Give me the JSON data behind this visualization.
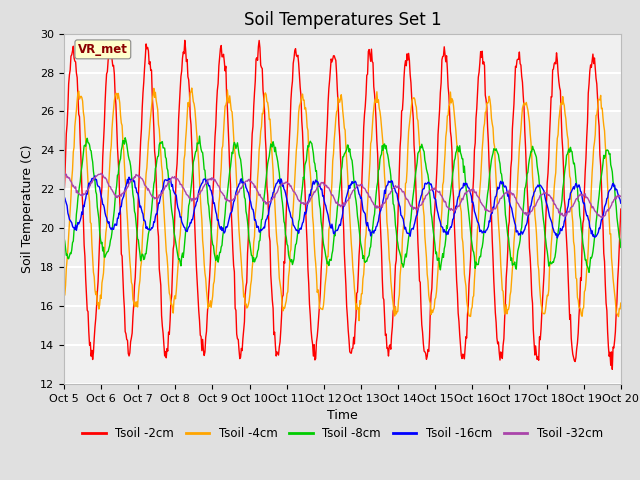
{
  "title": "Soil Temperatures Set 1",
  "xlabel": "Time",
  "ylabel": "Soil Temperature (C)",
  "ylim": [
    12,
    30
  ],
  "x_tick_labels": [
    "Oct 5",
    "Oct 6",
    "Oct 7",
    "Oct 8",
    "Oct 9",
    "Oct 10",
    "Oct 11",
    "Oct 12",
    "Oct 13",
    "Oct 14",
    "Oct 15",
    "Oct 16",
    "Oct 17",
    "Oct 18",
    "Oct 19",
    "Oct 20"
  ],
  "annotation": "VR_met",
  "annotation_color": "#8B0000",
  "annotation_bg": "#FFFFCC",
  "series_labels": [
    "Tsoil -2cm",
    "Tsoil -4cm",
    "Tsoil -8cm",
    "Tsoil -16cm",
    "Tsoil -32cm"
  ],
  "series_colors": [
    "#FF0000",
    "#FFA500",
    "#00CC00",
    "#0000FF",
    "#AA44AA"
  ],
  "amplitudes": [
    7.8,
    5.5,
    3.0,
    1.3,
    0.55
  ],
  "phases": [
    0.0,
    0.18,
    0.38,
    0.55,
    0.72
  ],
  "mean_start": [
    21.5,
    21.5,
    21.5,
    21.3,
    22.3
  ],
  "mean_end": [
    21.0,
    21.0,
    21.0,
    20.9,
    21.1
  ],
  "noise_scales": [
    0.25,
    0.18,
    0.12,
    0.08,
    0.04
  ],
  "background_color": "#E0E0E0",
  "plot_bg": "#F0F0F0",
  "grid_color": "#FFFFFF",
  "title_fontsize": 12,
  "label_fontsize": 9,
  "tick_fontsize": 8,
  "legend_fontsize": 8.5
}
